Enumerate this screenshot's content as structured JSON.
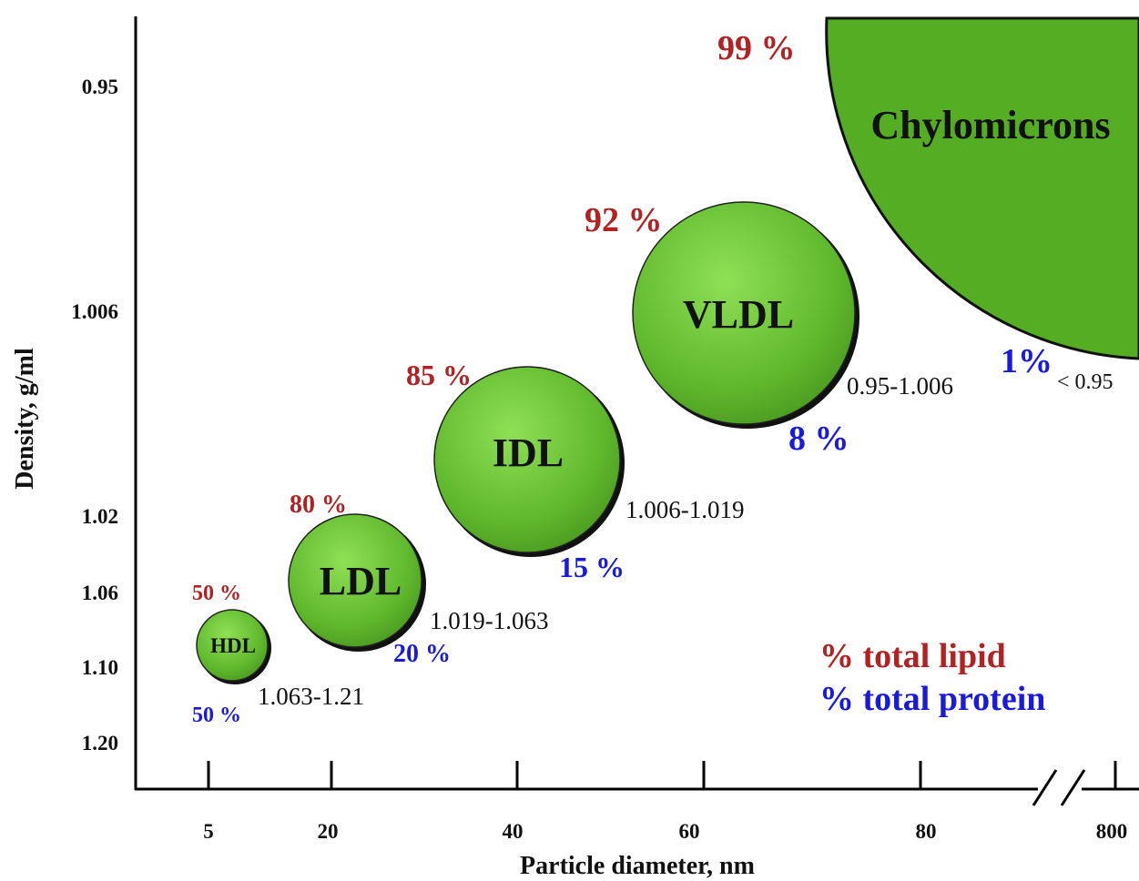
{
  "chart_data": {
    "type": "scatter",
    "title": "",
    "xlabel": "Particle diameter, nm",
    "ylabel": "Density, g/ml",
    "x_ticks": [
      "5",
      "20",
      "40",
      "60",
      "80",
      "800"
    ],
    "y_ticks": [
      "0.95",
      "1.006",
      "1.02",
      "1.06",
      "1.10",
      "1.20"
    ],
    "x_axis_break": true,
    "legend": {
      "placement": "bottom-right",
      "items": [
        {
          "label": "% total lipid",
          "color": "#b22222"
        },
        {
          "label": "% total protein",
          "color": "#1a1adc"
        }
      ]
    },
    "particles": [
      {
        "name": "HDL",
        "density_range": "1.063-1.21",
        "lipid_label": "50 %",
        "protein_label": "50 %",
        "lipid_pct": 50,
        "protein_pct": 50
      },
      {
        "name": "LDL",
        "density_range": "1.019-1.063",
        "lipid_label": "80 %",
        "protein_label": "20 %",
        "lipid_pct": 80,
        "protein_pct": 20
      },
      {
        "name": "IDL",
        "density_range": "1.006-1.019",
        "lipid_label": "85 %",
        "protein_label": "15 %",
        "lipid_pct": 85,
        "protein_pct": 15
      },
      {
        "name": "VLDL",
        "density_range": "0.95-1.006",
        "lipid_label": "92 %",
        "protein_label": "8 %",
        "lipid_pct": 92,
        "protein_pct": 8
      },
      {
        "name": "Chylomicrons",
        "density_range": "< 0.95",
        "lipid_label": "99 %",
        "protein_label": "1%",
        "lipid_pct": 99,
        "protein_pct": 1
      }
    ]
  },
  "colors": {
    "particle_fill": "#5fb82c",
    "particle_highlight": "#86d74c",
    "particle_stroke": "#111111",
    "lipid": "#b22222",
    "protein": "#1a1adc",
    "axis": "#000000",
    "text": "#111111"
  }
}
